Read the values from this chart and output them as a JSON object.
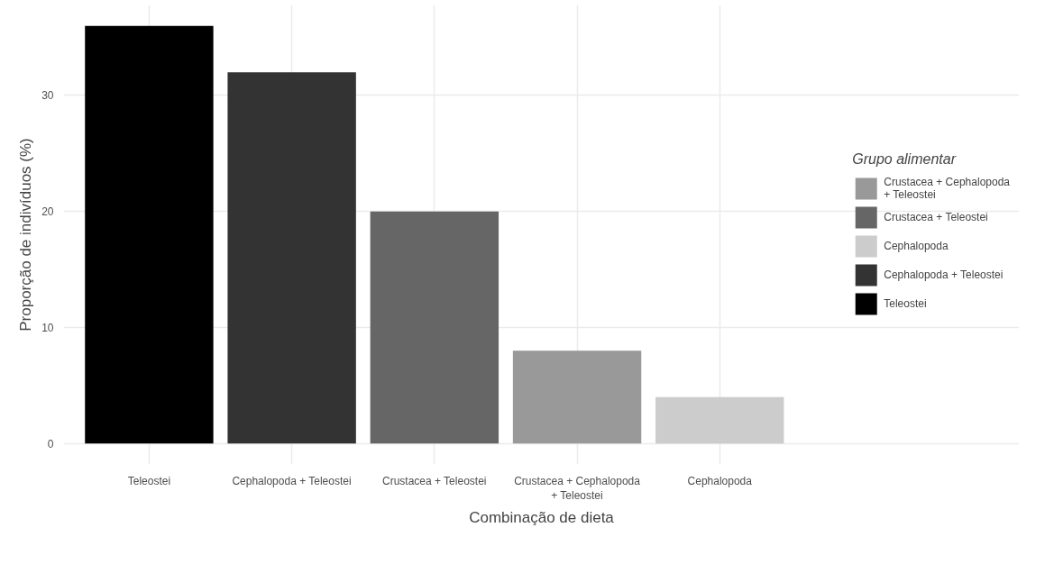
{
  "chart_data": {
    "type": "bar",
    "xlabel": "Combinação de dieta",
    "ylabel": "Proporção de indivíduos (%)",
    "legend_title": "Grupo alimentar",
    "categories": [
      "Teleostei",
      "Cephalopoda + Teleostei",
      "Crustacea + Teleostei",
      "Crustacea + Cephalopoda\n+ Teleostei",
      "Cephalopoda"
    ],
    "series": [
      {
        "name": "Crustacea + Cephalopoda\n+ Teleostei",
        "color": "#999999",
        "values": [
          null,
          null,
          null,
          8,
          null
        ]
      },
      {
        "name": "Crustacea + Teleostei",
        "color": "#666666",
        "values": [
          null,
          null,
          20,
          null,
          null
        ]
      },
      {
        "name": "Cephalopoda",
        "color": "#cccccc",
        "values": [
          null,
          null,
          null,
          null,
          4
        ]
      },
      {
        "name": "Cephalopoda + Teleostei",
        "color": "#333333",
        "values": [
          null,
          32,
          null,
          null,
          null
        ]
      },
      {
        "name": "Teleostei",
        "color": "#000000",
        "values": [
          36,
          null,
          null,
          null,
          null
        ]
      }
    ],
    "ylim": [
      -1.8,
      37.8
    ],
    "yticks": [
      0,
      10,
      20,
      30
    ],
    "grid": true,
    "legend": "right"
  }
}
